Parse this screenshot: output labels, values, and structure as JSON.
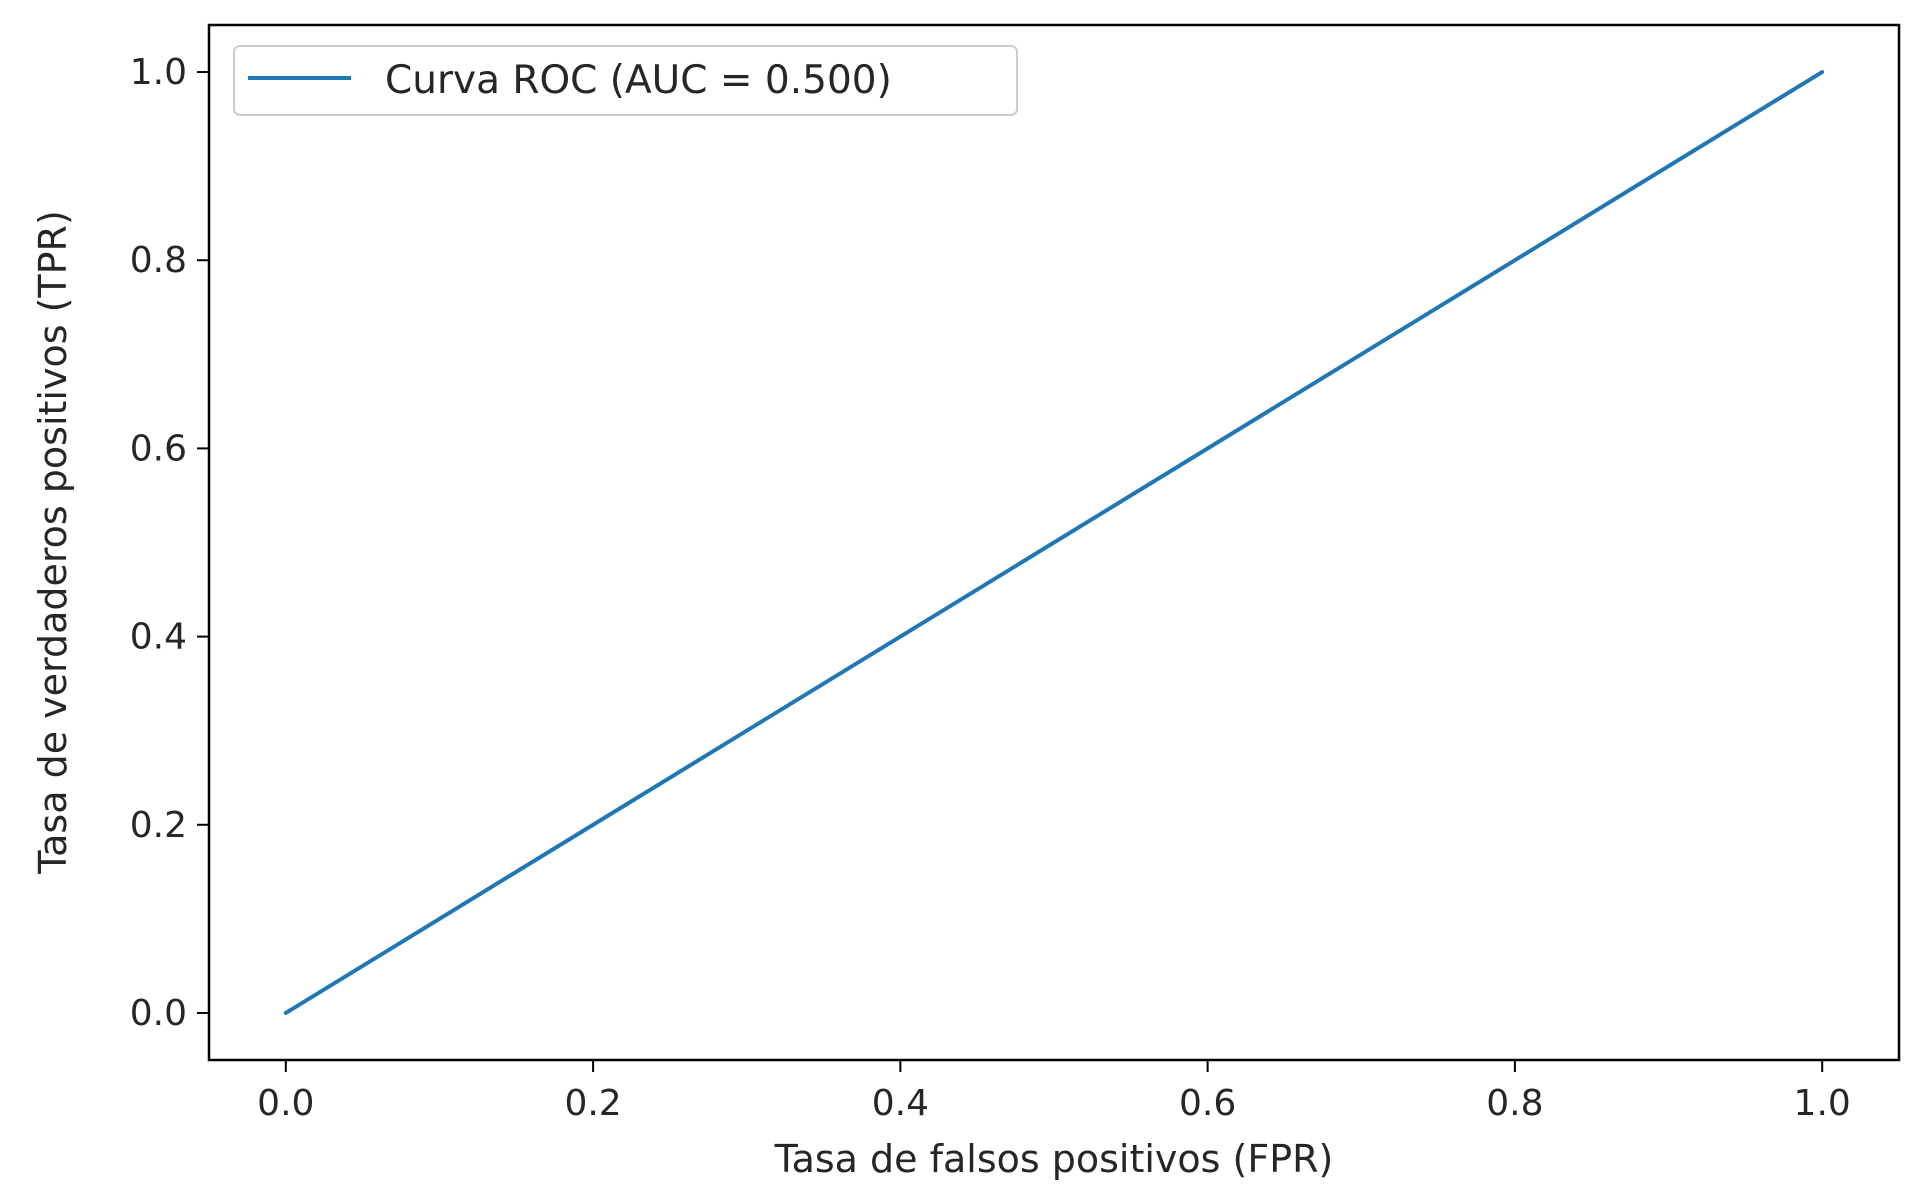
{
  "chart_data": {
    "type": "line",
    "title": "",
    "xlabel": "Tasa de falsos positivos (FPR)",
    "ylabel": "Tasa de verdaderos positivos (TPR)",
    "xlim": [
      -0.05,
      1.05
    ],
    "ylim": [
      -0.05,
      1.05
    ],
    "xticks": [
      "0.0",
      "0.2",
      "0.4",
      "0.6",
      "0.8",
      "1.0"
    ],
    "yticks": [
      "0.0",
      "0.2",
      "0.4",
      "0.6",
      "0.8",
      "1.0"
    ],
    "grid": false,
    "legend_position": "top-left",
    "series": [
      {
        "name": "Curva ROC (AUC = 0.500)",
        "color": "#1f77b4",
        "x": [
          0.0,
          1.0
        ],
        "y": [
          0.0,
          1.0
        ]
      }
    ]
  }
}
